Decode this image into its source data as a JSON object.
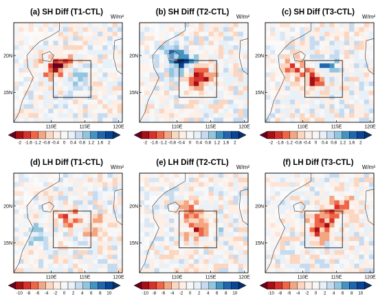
{
  "chart_data": [
    {
      "type": "heatmap",
      "title": "(a) SH Diff (T1-CTL)",
      "units": "W/m²",
      "x_ticks": [
        "110E",
        "115E",
        "120E"
      ],
      "y_ticks": [
        "20N",
        "15N"
      ],
      "colorbar_ticks": [
        "-2",
        "-1.6",
        "-1.2",
        "-0.8",
        "-0.4",
        "0",
        "0.4",
        "0.8",
        "1.2",
        "1.6",
        "2"
      ],
      "seed": 11,
      "anom": [
        [
          0.45,
          0.42,
          -1.0
        ],
        [
          0.35,
          0.48,
          -0.7
        ],
        [
          0.6,
          0.55,
          0.6
        ]
      ]
    },
    {
      "type": "heatmap",
      "title": "(b) SH Diff (T2-CTL)",
      "units": "W/m²",
      "x_ticks": [
        "110E",
        "115E",
        "120E"
      ],
      "y_ticks": [
        "20N",
        "15N"
      ],
      "colorbar_ticks": [
        "-2",
        "-1.6",
        "-1.2",
        "-0.8",
        "-0.4",
        "0",
        "0.4",
        "0.8",
        "1.2",
        "1.6",
        "2"
      ],
      "seed": 23,
      "anom": [
        [
          0.55,
          0.55,
          -1.6
        ],
        [
          0.42,
          0.42,
          1.2
        ],
        [
          0.3,
          0.35,
          1.0
        ]
      ]
    },
    {
      "type": "heatmap",
      "title": "(c) SH Diff (T3-CTL)",
      "units": "W/m²",
      "x_ticks": [
        "110E",
        "115E",
        "120E"
      ],
      "y_ticks": [
        "20N",
        "15N"
      ],
      "colorbar_ticks": [
        "-2",
        "-1.6",
        "-1.2",
        "-0.8",
        "-0.4",
        "0",
        "0.4",
        "0.8",
        "1.2",
        "1.6",
        "2"
      ],
      "seed": 37,
      "anom": [
        [
          0.45,
          0.55,
          -1.6
        ],
        [
          0.55,
          0.45,
          1.1
        ],
        [
          0.25,
          0.45,
          -0.8
        ]
      ]
    },
    {
      "type": "heatmap",
      "title": "(d) LH Diff (T1-CTL)",
      "units": "W/m²",
      "x_ticks": [
        "110E",
        "115E",
        "120E"
      ],
      "y_ticks": [
        "20N",
        "15N"
      ],
      "colorbar_ticks": [
        "-10",
        "-8",
        "-6",
        "-4",
        "-2",
        "0",
        "2",
        "4",
        "6",
        "8",
        "10"
      ],
      "seed": 51,
      "anom": [
        [
          0.5,
          0.45,
          -4
        ],
        [
          0.75,
          0.55,
          -3
        ],
        [
          0.2,
          0.6,
          3
        ]
      ]
    },
    {
      "type": "heatmap",
      "title": "(e) LH Diff (T2-CTL)",
      "units": "W/m²",
      "x_ticks": [
        "110E",
        "115E",
        "120E"
      ],
      "y_ticks": [
        "20N",
        "15N"
      ],
      "colorbar_ticks": [
        "-10",
        "-8",
        "-6",
        "-4",
        "-2",
        "0",
        "2",
        "4",
        "6",
        "8",
        "10"
      ],
      "seed": 67,
      "anom": [
        [
          0.55,
          0.55,
          -6
        ],
        [
          0.45,
          0.4,
          -4
        ],
        [
          0.7,
          0.6,
          2
        ]
      ]
    },
    {
      "type": "heatmap",
      "title": "(f) LH Diff (T3-CTL)",
      "units": "W/m²",
      "x_ticks": [
        "110E",
        "115E",
        "120E"
      ],
      "y_ticks": [
        "20N",
        "15N"
      ],
      "colorbar_ticks": [
        "-10",
        "-8",
        "-6",
        "-4",
        "-2",
        "0",
        "2",
        "4",
        "6",
        "8",
        "10"
      ],
      "seed": 83,
      "anom": [
        [
          0.5,
          0.55,
          -6
        ],
        [
          0.6,
          0.4,
          -4
        ],
        [
          0.7,
          0.3,
          -3
        ]
      ]
    }
  ],
  "colors": {
    "palette": [
      "#67001f",
      "#a50f15",
      "#d6312b",
      "#ef6548",
      "#f4a582",
      "#fbd6c0",
      "#fdeee6",
      "#f7f7f7",
      "#e8f0f8",
      "#c6dbef",
      "#92c5de",
      "#4393c3",
      "#2166ac",
      "#084594",
      "#08306b"
    ]
  }
}
